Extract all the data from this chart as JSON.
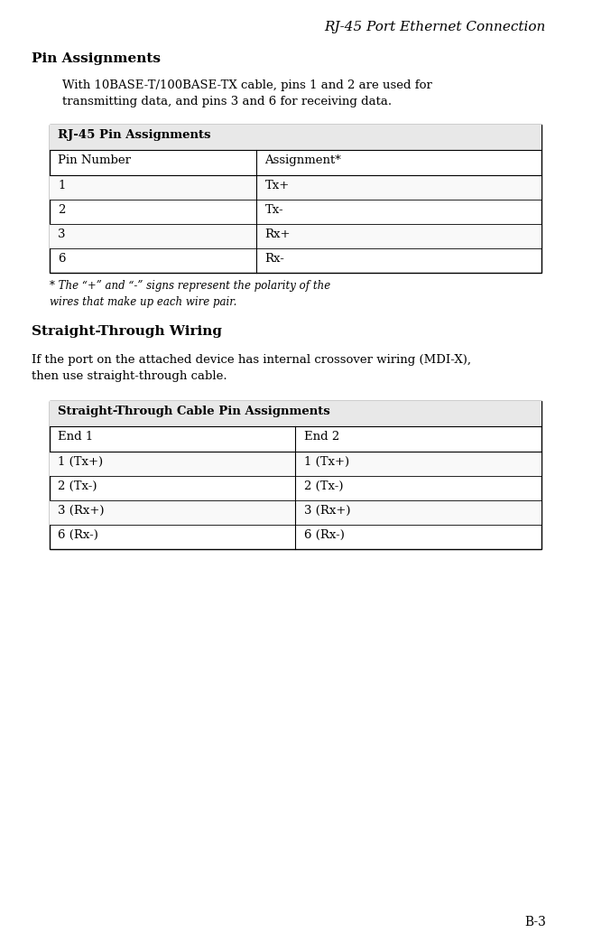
{
  "page_title": "RJ-45 Port Ethernet Connection",
  "section1_heading": "Pin Assignments",
  "section1_body": "With 10BASE-T/100BASE-TX cable, pins 1 and 2 are used for\ntransmitting data, and pins 3 and 6 for receiving data.",
  "table1_title": "RJ-45 Pin Assignments",
  "table1_col_headers": [
    "Pin Number",
    "Assignment*"
  ],
  "table1_rows": [
    [
      "1",
      "Tx+"
    ],
    [
      "2",
      "Tx-"
    ],
    [
      "3",
      "Rx+"
    ],
    [
      "6",
      "Rx-"
    ]
  ],
  "table1_footnote": "* The “+” and “-” signs represent the polarity of the\nwires that make up each wire pair.",
  "section2_heading": "Straight-Through Wiring",
  "section2_body": "If the port on the attached device has internal crossover wiring (MDI-X),\nthen use straight-through cable.",
  "table2_title": "Straight-Through Cable Pin Assignments",
  "table2_col_headers": [
    "End 1",
    "End 2"
  ],
  "table2_rows": [
    [
      "1 (Tx+)",
      "1 (Tx+)"
    ],
    [
      "2 (Tx-)",
      "2 (Tx-)"
    ],
    [
      "3 (Rx+)",
      "3 (Rx+)"
    ],
    [
      "6 (Rx-)",
      "6 (Rx-)"
    ]
  ],
  "page_number": "B-3",
  "bg_color": "#ffffff",
  "text_color": "#000000",
  "table_header_bg": "#d0d0d0",
  "table_border_color": "#000000",
  "body_font_size": 9.5,
  "heading_font_size": 11,
  "title_font_size": 10,
  "table_header_font_size": 9.5,
  "table_body_font_size": 9.5,
  "page_title_font_size": 11
}
